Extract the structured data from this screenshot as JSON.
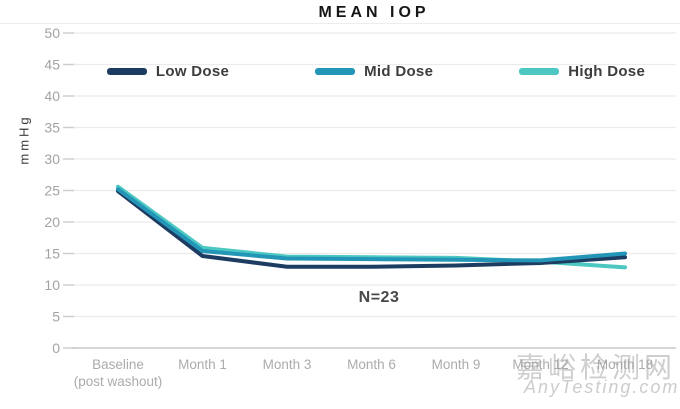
{
  "watermark": {
    "cn": "嘉峪检测网",
    "en": "AnyTesting.com"
  },
  "chart_data": {
    "type": "line",
    "title": "MEAN IOP",
    "ylabel": "mmHg",
    "xlabel": "",
    "ylim": [
      0,
      50
    ],
    "ytick_step": 5,
    "grid": true,
    "legend_position": "top",
    "annotation": "N=23",
    "categories": [
      {
        "label": "Baseline",
        "sub": "(post washout)"
      },
      {
        "label": "Month 1",
        "sub": ""
      },
      {
        "label": "Month 3",
        "sub": ""
      },
      {
        "label": "Month 6",
        "sub": ""
      },
      {
        "label": "Month 9",
        "sub": ""
      },
      {
        "label": "Month 12",
        "sub": ""
      },
      {
        "label": "Month 18",
        "sub": ""
      }
    ],
    "series": [
      {
        "name": "Low Dose",
        "color": "#1d3c61",
        "values": [
          24.9,
          14.6,
          12.9,
          12.9,
          13.1,
          13.5,
          14.4
        ]
      },
      {
        "name": "Mid Dose",
        "color": "#2396b7",
        "values": [
          25.2,
          15.4,
          14.2,
          14.1,
          14.0,
          13.9,
          15.0
        ]
      },
      {
        "name": "High Dose",
        "color": "#4cc7c2",
        "values": [
          25.6,
          15.9,
          14.5,
          14.4,
          14.3,
          13.7,
          12.8
        ]
      }
    ],
    "colors": {
      "gridline": "#ebebeb",
      "axis": "#d6d6d6",
      "tick_text": "#a3a3a3"
    }
  }
}
